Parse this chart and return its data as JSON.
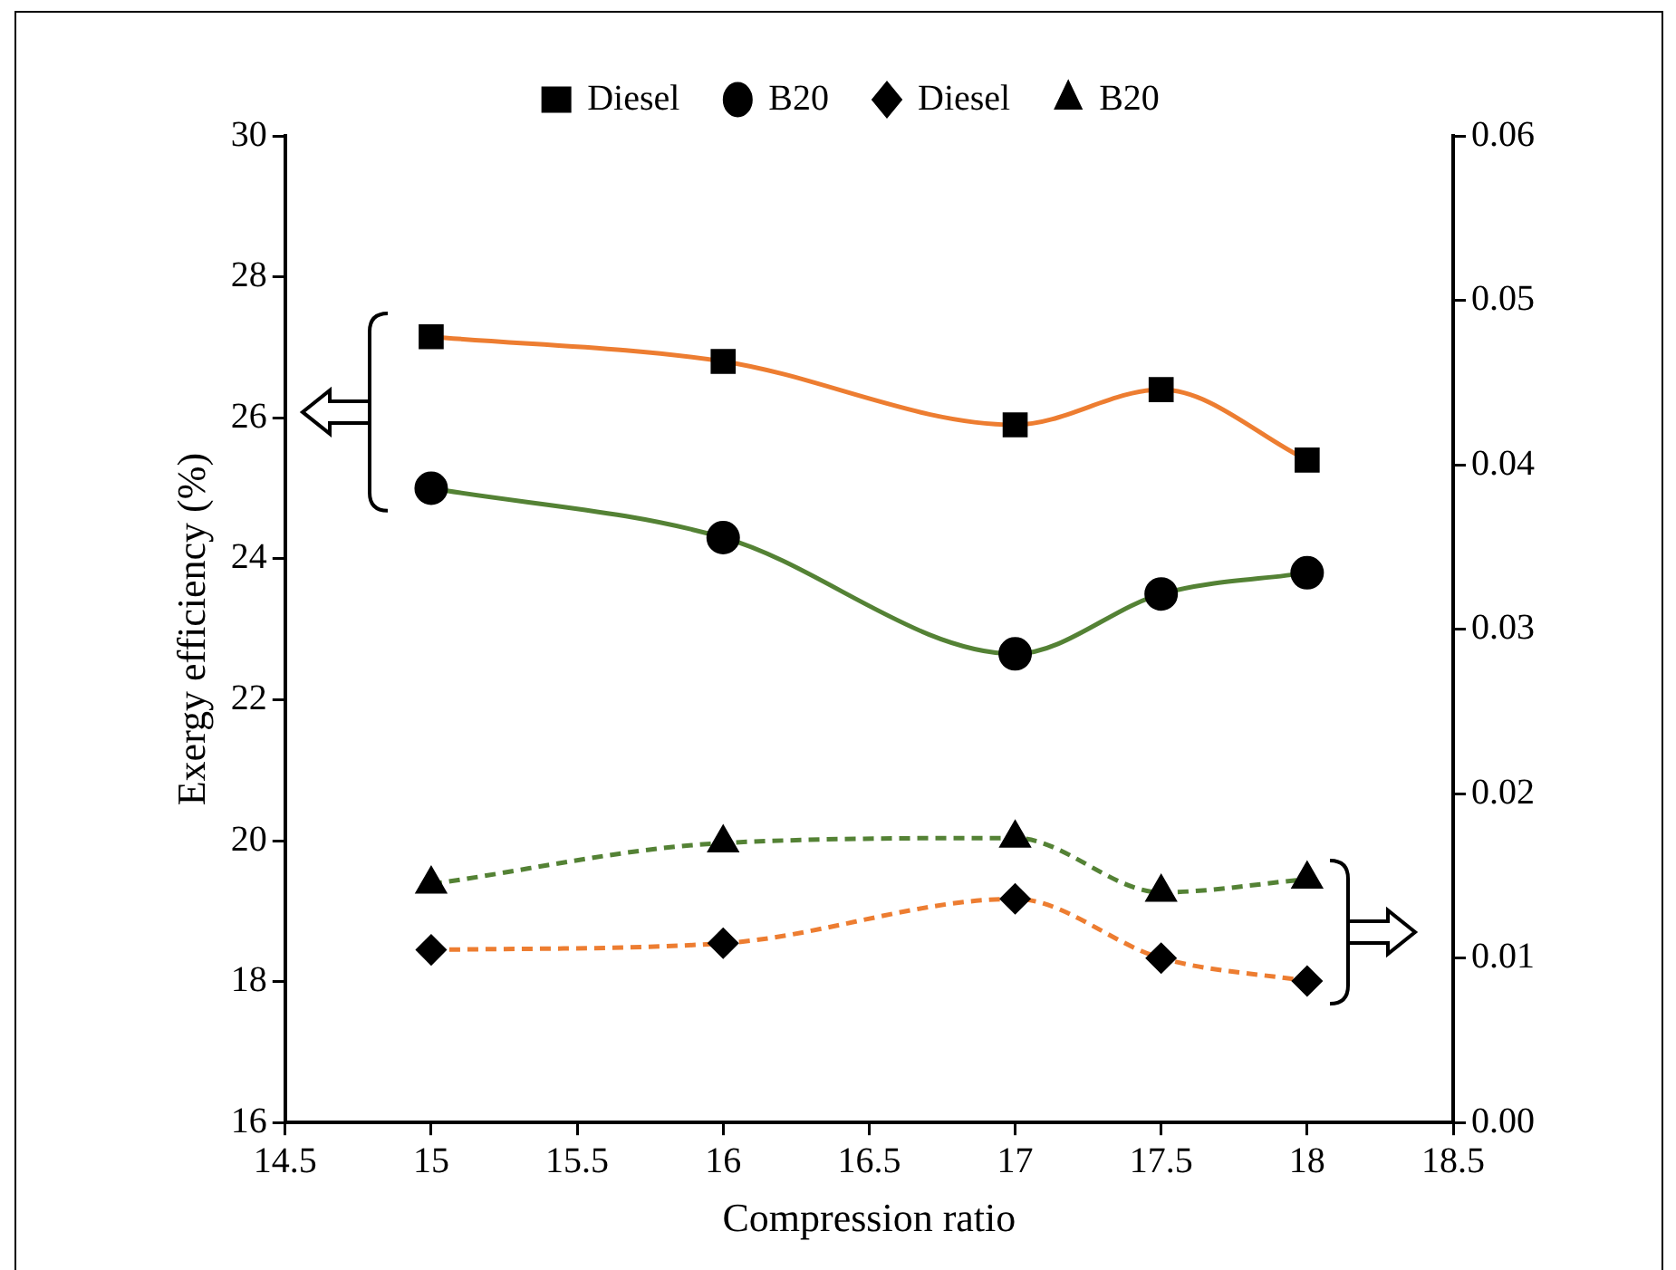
{
  "chart_data": {
    "type": "line",
    "xlabel": "Compression ratio",
    "ylabel": "Exergy efficiency (%)",
    "x": [
      15,
      16,
      17,
      17.5,
      18
    ],
    "xlim": [
      14.5,
      18.5
    ],
    "xticks": [
      14.5,
      15,
      15.5,
      16,
      16.5,
      17,
      17.5,
      18,
      18.5
    ],
    "ylim": [
      16,
      30
    ],
    "yticks": [
      16,
      18,
      20,
      22,
      24,
      26,
      28,
      30
    ],
    "y2lim": [
      0,
      0.06
    ],
    "y2ticks": [
      {
        "value": 0,
        "label": "0.00"
      },
      {
        "value": 0.01,
        "label": "0.01"
      },
      {
        "value": 0.02,
        "label": "0.02"
      },
      {
        "value": 0.03,
        "label": "0.03"
      },
      {
        "value": 0.04,
        "label": "0.04"
      },
      {
        "value": 0.05,
        "label": "0.05"
      },
      {
        "value": 0.06,
        "label": "0.06"
      }
    ],
    "grid": false,
    "legend": "top",
    "series": [
      {
        "name": "Diesel",
        "color": "#ed7d31",
        "marker": "square",
        "line_style": "solid",
        "values": [
          27.15,
          26.8,
          25.9,
          26.4,
          25.4
        ]
      },
      {
        "name": "B20",
        "color": "#548235",
        "marker": "circle",
        "line_style": "solid",
        "values": [
          25.0,
          24.3,
          22.65,
          23.5,
          23.8
        ]
      },
      {
        "name": "Diesel",
        "color": "#ed7d31",
        "marker": "diamond",
        "line_style": "dashed",
        "axis": "y2",
        "values": [
          0.0105,
          0.0109,
          0.0136,
          0.01,
          0.0086
        ]
      },
      {
        "name": "B20",
        "color": "#548235",
        "marker": "triangle",
        "line_style": "dashed",
        "axis": "y2",
        "values": [
          0.0145,
          0.017,
          0.0173,
          0.014,
          0.0148
        ]
      }
    ]
  }
}
